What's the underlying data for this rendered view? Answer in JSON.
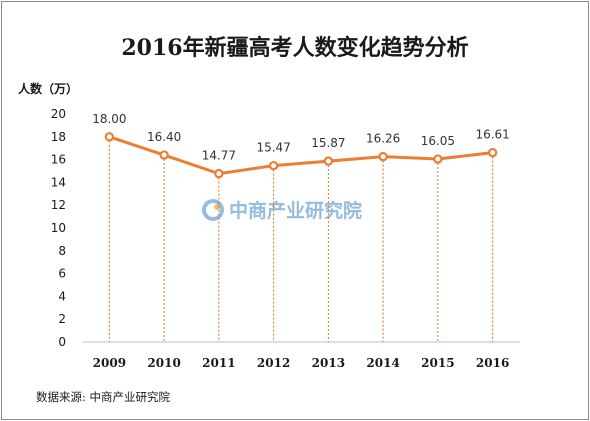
{
  "title": "2016年新疆高考人数变化趋势分析",
  "source_note": "数据来源: 中商产业研究院",
  "watermark": {
    "text": "中商产业研究院",
    "color": "#3a87c8"
  },
  "colors": {
    "line": "#ed7d31",
    "grid": "#e46c2a"
  },
  "chart_data": {
    "type": "line",
    "title": "2016年新疆高考人数变化趋势分析",
    "ylabel": "人数（万）",
    "xlabel": "",
    "categories": [
      "2009",
      "2010",
      "2011",
      "2012",
      "2013",
      "2014",
      "2015",
      "2016"
    ],
    "series": [
      {
        "values": [
          18.0,
          16.4,
          14.77,
          15.47,
          15.87,
          16.26,
          16.05,
          16.61
        ]
      }
    ],
    "data_labels": [
      "18.00",
      "16.40",
      "14.77",
      "15.47",
      "15.87",
      "16.26",
      "16.05",
      "16.61"
    ],
    "yticks": [
      0,
      2,
      4,
      6,
      8,
      10,
      12,
      14,
      16,
      18,
      20
    ],
    "ylim": [
      0,
      20
    ],
    "grid": false,
    "drop_lines": true,
    "legend": "none"
  }
}
